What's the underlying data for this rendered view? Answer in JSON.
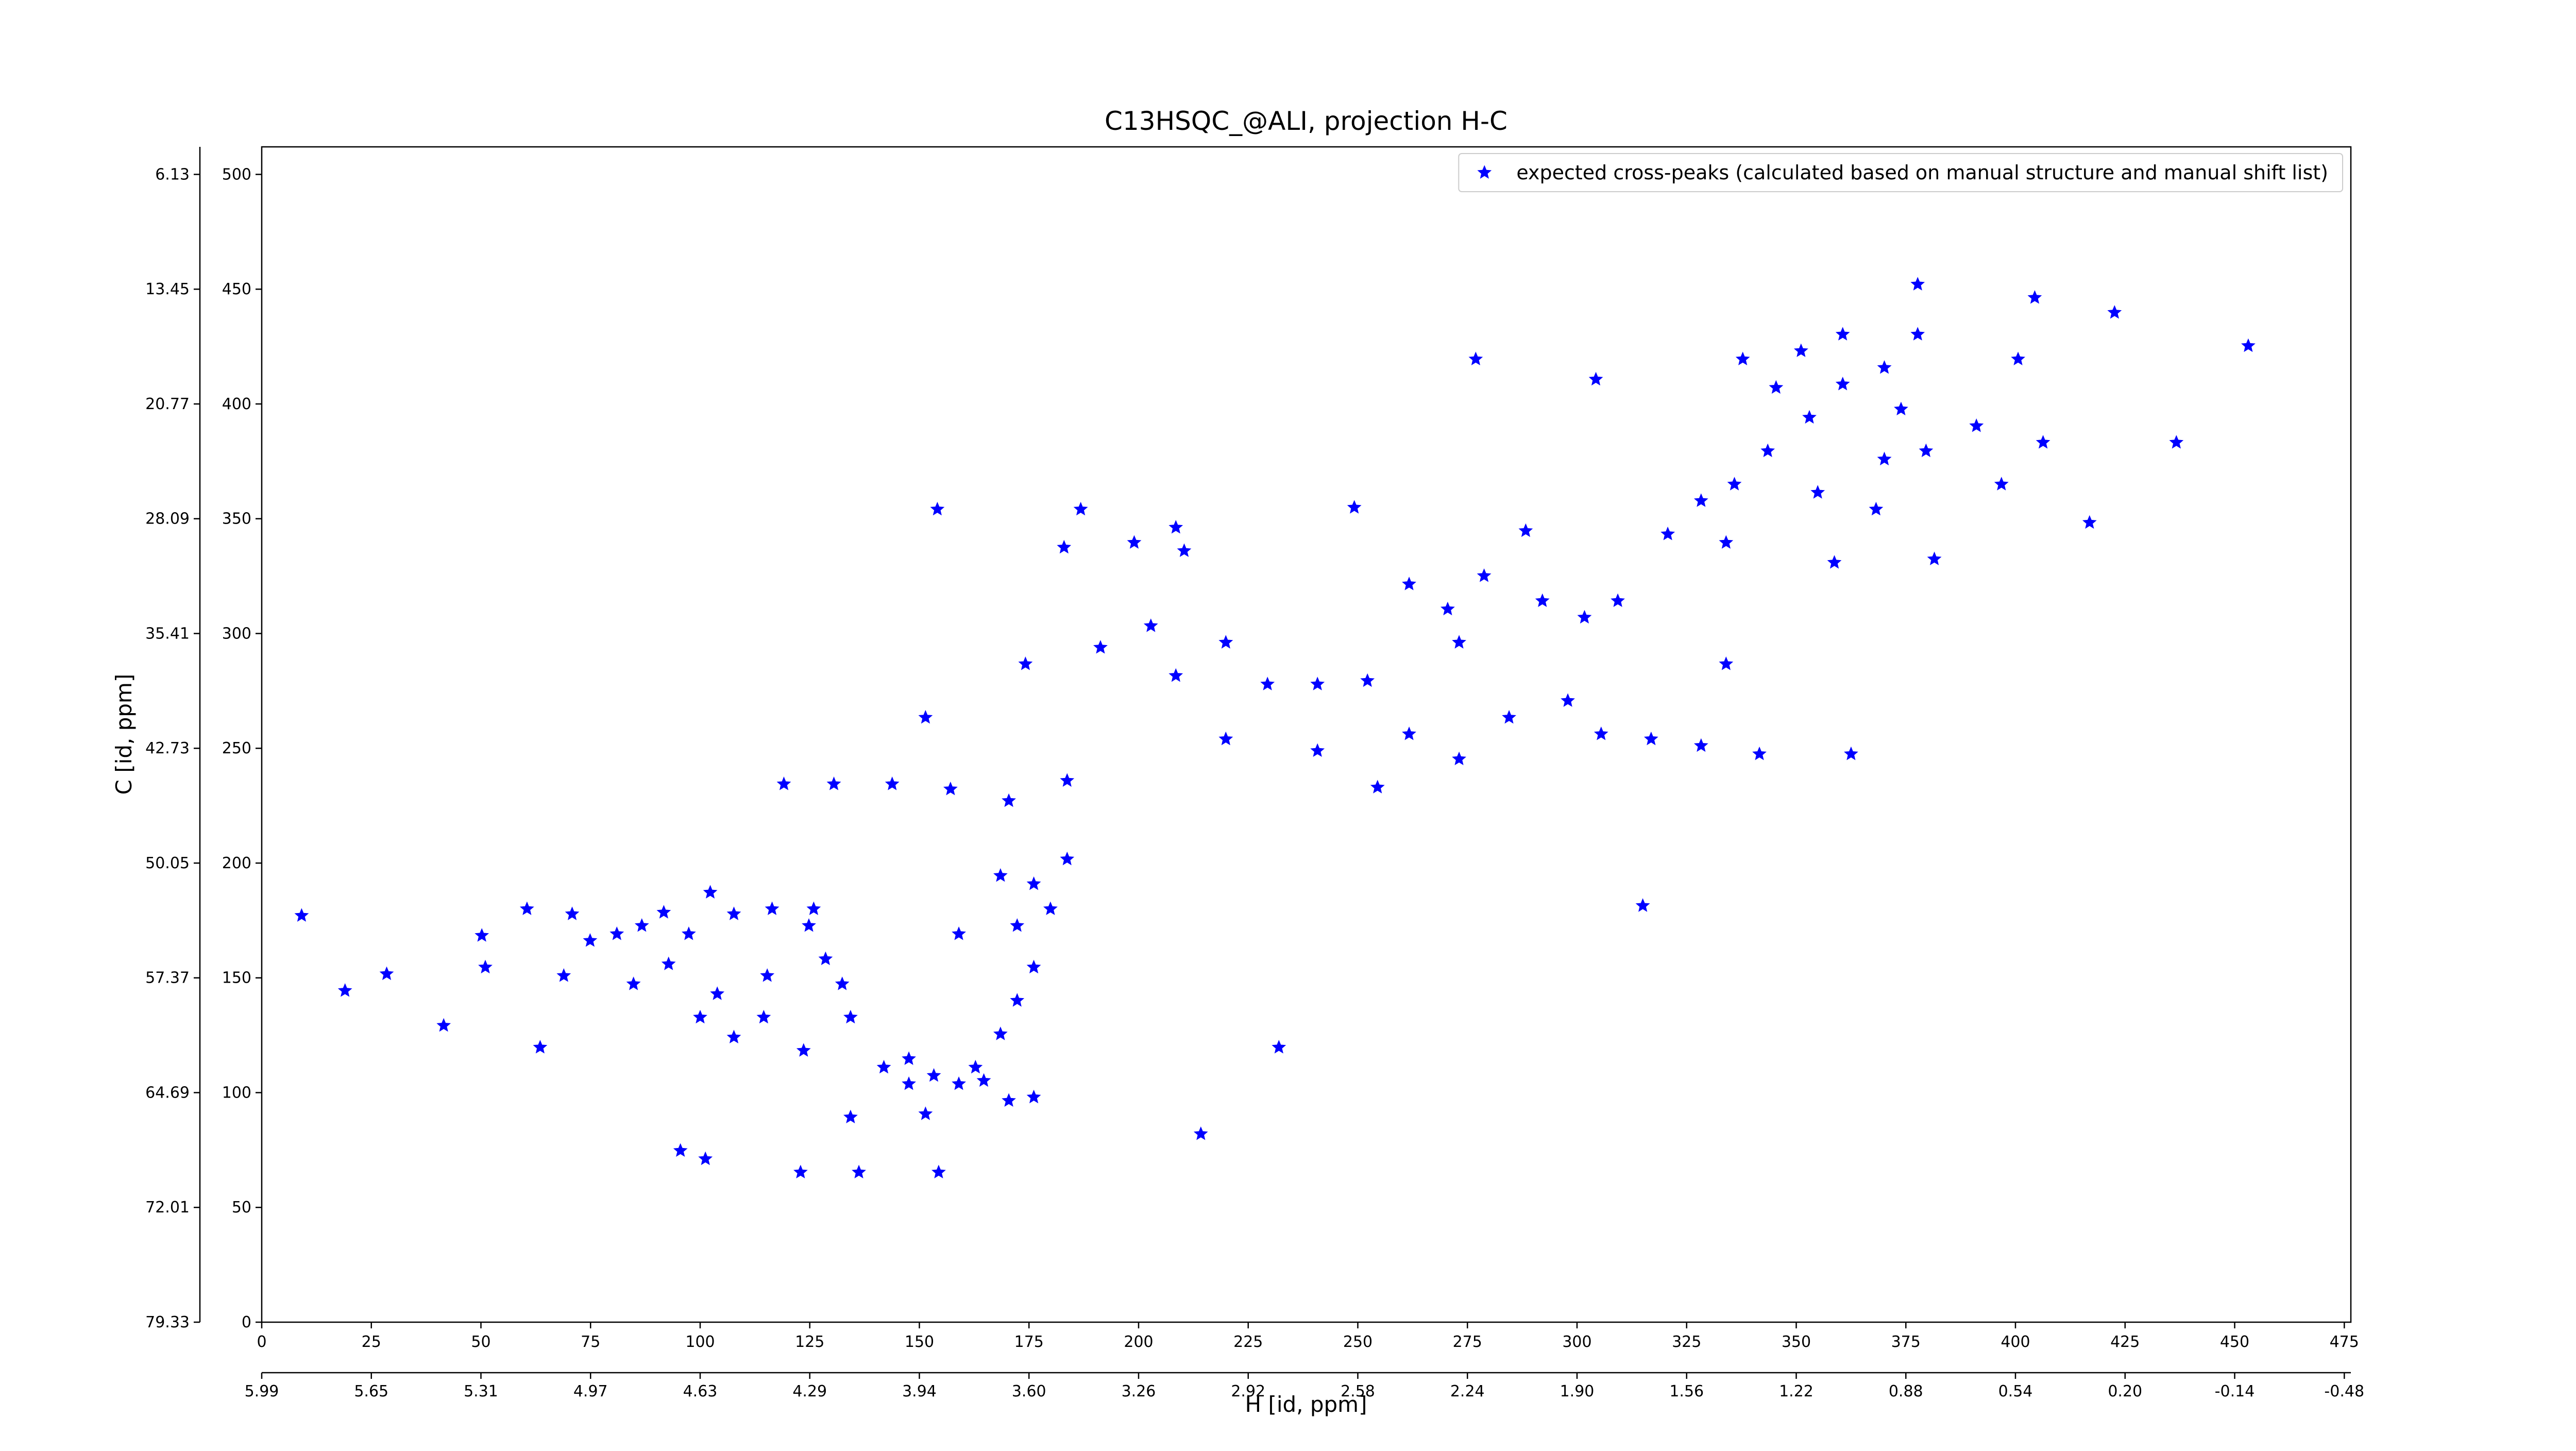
{
  "chart_data": {
    "type": "scatter",
    "title": "C13HSQC_@ALI, projection H-C",
    "xlabel": "H [id, ppm]",
    "ylabel": "C [id, ppm]",
    "legend": "upper right",
    "xlim": [
      0,
      476.5
    ],
    "ylim": [
      0,
      512
    ],
    "xticks": [
      0,
      25,
      50,
      75,
      100,
      125,
      150,
      175,
      200,
      225,
      250,
      275,
      300,
      325,
      350,
      375,
      400,
      425,
      450,
      475
    ],
    "yticks": [
      0,
      50,
      100,
      150,
      200,
      250,
      300,
      350,
      400,
      450,
      500
    ],
    "x2ticks": [
      {
        "value": 0,
        "label": "5.99"
      },
      {
        "value": 25,
        "label": "5.65"
      },
      {
        "value": 50,
        "label": "5.31"
      },
      {
        "value": 75,
        "label": "4.97"
      },
      {
        "value": 100,
        "label": "4.63"
      },
      {
        "value": 125,
        "label": "4.29"
      },
      {
        "value": 150,
        "label": "3.94"
      },
      {
        "value": 175,
        "label": "3.60"
      },
      {
        "value": 200,
        "label": "3.26"
      },
      {
        "value": 225,
        "label": "2.92"
      },
      {
        "value": 250,
        "label": "2.58"
      },
      {
        "value": 275,
        "label": "2.24"
      },
      {
        "value": 300,
        "label": "1.90"
      },
      {
        "value": 325,
        "label": "1.56"
      },
      {
        "value": 350,
        "label": "1.22"
      },
      {
        "value": 375,
        "label": "0.88"
      },
      {
        "value": 400,
        "label": "0.54"
      },
      {
        "value": 425,
        "label": "0.20"
      },
      {
        "value": 450,
        "label": "-0.14"
      },
      {
        "value": 475,
        "label": "-0.48"
      }
    ],
    "y2ticks": [
      {
        "value": 500,
        "label": "6.13"
      },
      {
        "value": 450,
        "label": "13.45"
      },
      {
        "value": 400,
        "label": "20.77"
      },
      {
        "value": 350,
        "label": "28.09"
      },
      {
        "value": 300,
        "label": "35.41"
      },
      {
        "value": 250,
        "label": "42.73"
      },
      {
        "value": 200,
        "label": "50.05"
      },
      {
        "value": 150,
        "label": "57.37"
      },
      {
        "value": 100,
        "label": "64.69"
      },
      {
        "value": 50,
        "label": "72.01"
      },
      {
        "value": 0,
        "label": "79.33"
      }
    ],
    "series": [
      {
        "name": "expected cross-peaks (calculated based on manual structure and manual shift list)",
        "color": "#0000ff",
        "x": [
          9.1,
          19.0,
          28.5,
          41.5,
          51.0,
          63.5,
          50.2,
          60.5,
          70.8,
          74.9,
          68.9,
          81.0,
          86.7,
          91.7,
          97.4,
          102.3,
          107.7,
          116.4,
          125.9,
          92.8,
          103.9,
          114.5,
          123.6,
          84.8,
          100.0,
          107.7,
          115.3,
          124.8,
          128.6,
          132.4,
          134.3,
          141.9,
          147.6,
          153.3,
          159.0,
          164.7,
          170.4,
          176.1,
          147.6,
          162.8,
          168.5,
          172.3,
          176.1,
          159.0,
          172.3,
          179.9,
          176.1,
          183.7,
          168.5,
          95.5,
          101.2,
          122.9,
          136.2,
          154.4,
          134.3,
          151.4,
          214.2,
          232.0,
          119.1,
          130.5,
          143.8,
          157.1,
          170.4,
          183.7,
          151.4,
          174.2,
          191.3,
          202.8,
          208.5,
          219.9,
          229.4,
          240.8,
          252.2,
          219.9,
          240.8,
          261.7,
          273.1,
          284.5,
          297.9,
          305.5,
          316.9,
          328.3,
          334.0,
          341.6,
          362.5,
          254.5,
          199.0,
          210.4,
          208.5,
          249.2,
          261.7,
          270.5,
          273.1,
          278.8,
          288.3,
          292.1,
          301.7,
          309.3,
          320.7,
          328.3,
          335.9,
          343.5,
          353.0,
          360.6,
          370.1,
          377.7,
          377.7,
          360.6,
          337.8,
          276.9,
          304.3,
          370.1,
          379.6,
          391.1,
          400.6,
          404.4,
          422.6,
          453.1,
          436.7,
          416.9,
          368.2,
          358.7,
          381.5,
          354.9,
          334.0,
          396.8,
          154.1,
          186.8,
          183.0,
          315.0,
          406.3,
          351.1,
          345.4,
          373.9
        ],
        "y": [
          177.1,
          144.4,
          151.7,
          129.2,
          154.6,
          119.7,
          168.4,
          180.0,
          177.8,
          166.2,
          150.9,
          169.1,
          172.7,
          178.5,
          169.1,
          187.2,
          177.8,
          180.0,
          180.0,
          156.0,
          143.0,
          132.8,
          118.3,
          147.3,
          132.8,
          124.1,
          150.9,
          172.7,
          158.2,
          147.3,
          132.8,
          111.0,
          103.8,
          107.4,
          103.8,
          105.2,
          96.5,
          98.0,
          114.7,
          111.0,
          125.5,
          140.1,
          154.6,
          169.1,
          172.7,
          180.0,
          190.9,
          201.7,
          194.5,
          74.7,
          71.1,
          65.3,
          65.3,
          65.3,
          89.3,
          90.7,
          82.0,
          119.7,
          234.4,
          234.4,
          234.4,
          232.2,
          227.1,
          235.9,
          263.4,
          286.7,
          293.9,
          303.3,
          281.6,
          296.1,
          277.9,
          277.9,
          279.4,
          254.0,
          248.9,
          256.2,
          245.3,
          263.4,
          270.7,
          256.2,
          254.0,
          251.1,
          286.7,
          247.5,
          247.5,
          233.0,
          339.6,
          336.0,
          346.2,
          354.9,
          321.5,
          310.6,
          296.1,
          325.1,
          344.7,
          314.2,
          307.0,
          314.2,
          343.3,
          357.8,
          365.0,
          379.5,
          394.1,
          408.6,
          415.8,
          430.3,
          452.1,
          430.3,
          419.5,
          419.5,
          410.7,
          375.9,
          379.5,
          390.4,
          419.5,
          446.3,
          439.8,
          425.3,
          383.2,
          348.3,
          354.1,
          330.9,
          332.4,
          361.4,
          339.6,
          365.0,
          354.1,
          354.1,
          337.5,
          181.4,
          383.2,
          423.1,
          407.1,
          397.7
        ]
      }
    ]
  }
}
